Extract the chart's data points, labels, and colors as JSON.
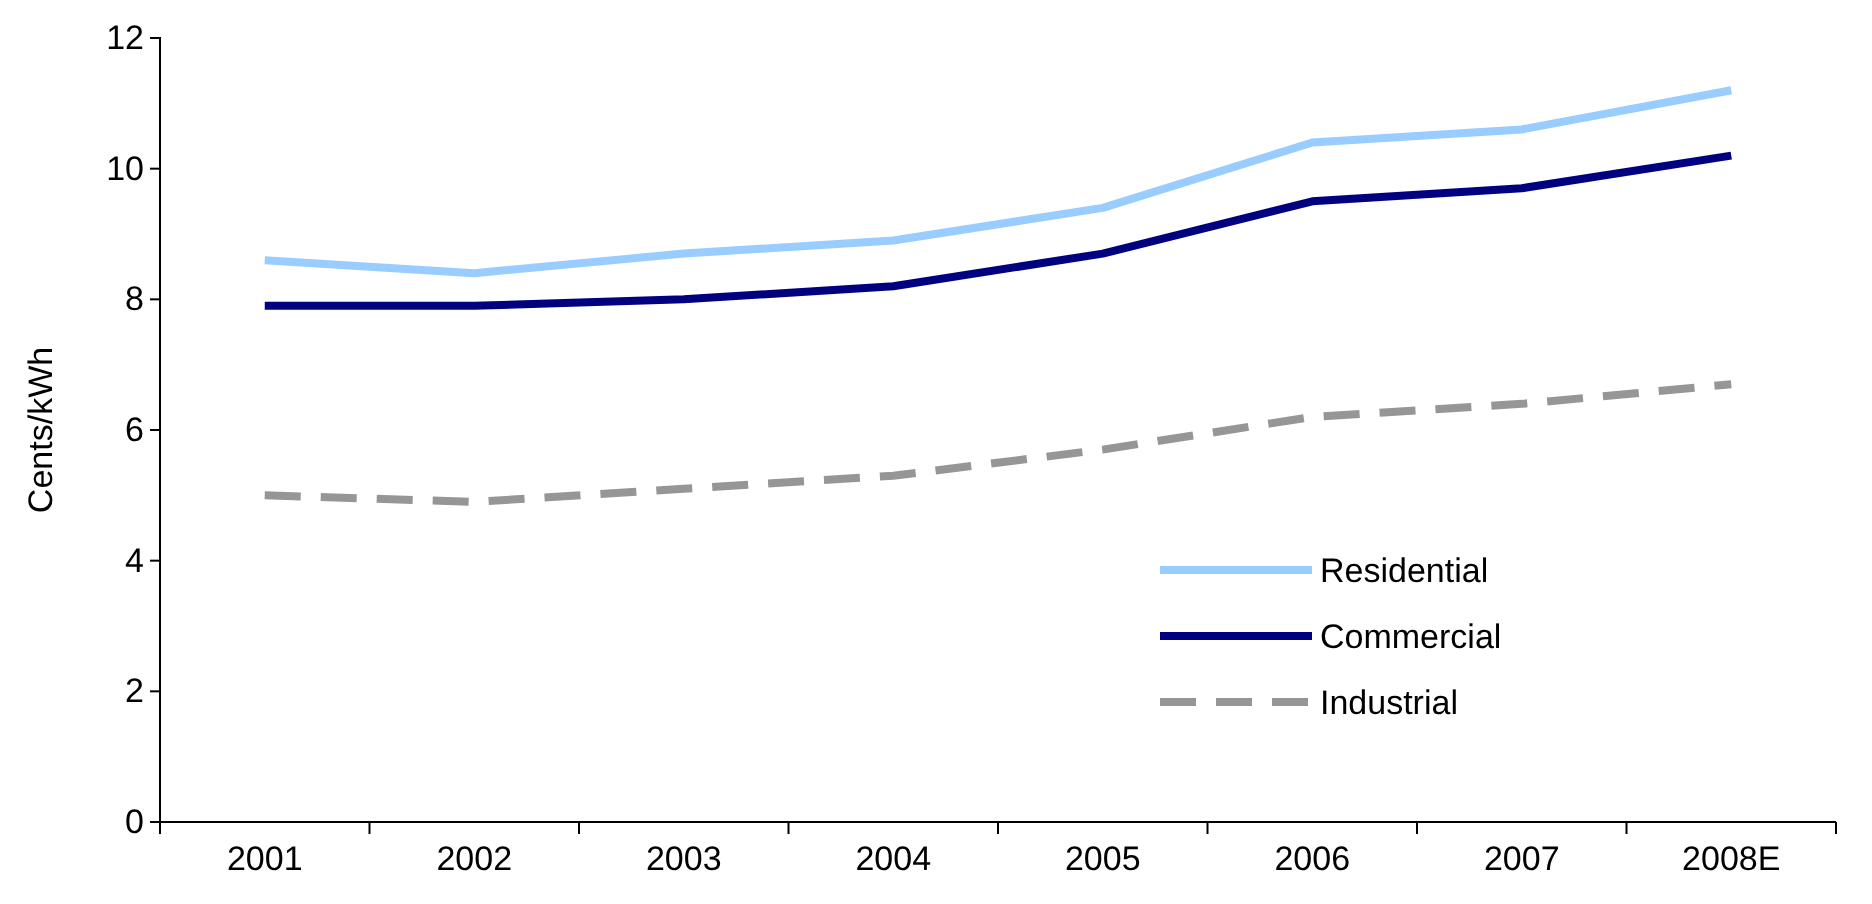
{
  "chart_data": {
    "type": "line",
    "ylabel": "Cents/kWh",
    "categories": [
      "2001",
      "2002",
      "2003",
      "2004",
      "2005",
      "2006",
      "2007",
      "2008E"
    ],
    "series": [
      {
        "name": "Residential",
        "color": "#99ccff",
        "line_style": "solid",
        "values": [
          8.6,
          8.4,
          8.7,
          8.9,
          9.4,
          10.4,
          10.6,
          11.2
        ]
      },
      {
        "name": "Commercial",
        "color": "#000080",
        "line_style": "solid",
        "values": [
          7.9,
          7.9,
          8.0,
          8.2,
          8.7,
          9.5,
          9.7,
          10.2
        ]
      },
      {
        "name": "Industrial",
        "color": "#969696",
        "line_style": "dashed",
        "values": [
          5.0,
          4.9,
          5.1,
          5.3,
          5.7,
          6.2,
          6.4,
          6.7
        ]
      }
    ],
    "ylim": [
      0,
      12
    ],
    "yticks": [
      0,
      2,
      4,
      6,
      8,
      10,
      12
    ],
    "grid": false,
    "legend": "bottom right",
    "marker": "none"
  }
}
